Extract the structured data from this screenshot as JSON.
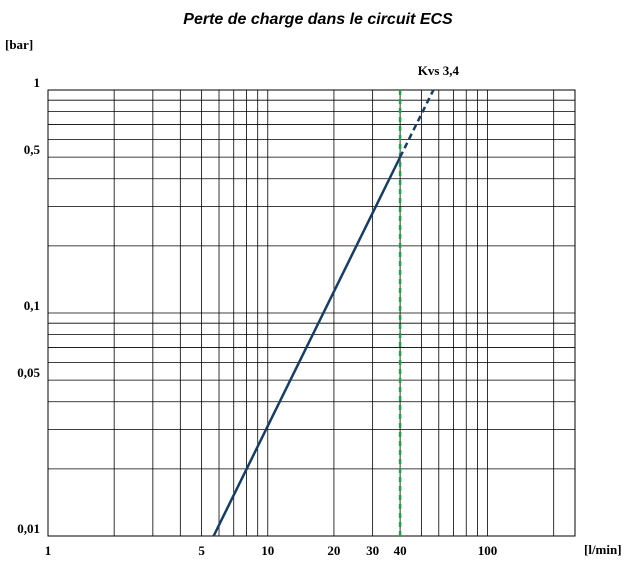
{
  "chart_data": {
    "type": "line",
    "title": "Perte de charge dans le circuit ECS",
    "y_label": "[bar]",
    "x_label": "[l/min]",
    "log_x": true,
    "log_y": true,
    "grid": true,
    "xlim": [
      1,
      250
    ],
    "ylim": [
      0.01,
      1
    ],
    "xticks": [
      1,
      5,
      10,
      20,
      30,
      40,
      100
    ],
    "yticks": [
      {
        "value": 0.01,
        "label": "0,01"
      },
      {
        "value": 0.05,
        "label": "0,05"
      },
      {
        "value": 0.1,
        "label": "0,1"
      },
      {
        "value": 0.5,
        "label": "0,5"
      },
      1
    ],
    "x_grid": [
      1,
      2,
      3,
      4,
      5,
      6,
      7,
      8,
      9,
      10,
      20,
      30,
      40,
      50,
      60,
      70,
      80,
      90,
      100,
      200
    ],
    "y_grid": [
      0.01,
      0.02,
      0.03,
      0.04,
      0.05,
      0.06,
      0.07,
      0.08,
      0.09,
      0.1,
      0.2,
      0.3,
      0.4,
      0.5,
      0.6,
      0.7,
      0.8,
      0.9,
      1
    ],
    "vline": {
      "x": 40,
      "color": "#22a045"
    },
    "series": [
      {
        "name": "Kvs 3,4",
        "color": "#173d63",
        "x": [
          5.67,
          40,
          56.7
        ],
        "values": [
          0.01,
          0.5,
          1
        ]
      }
    ]
  }
}
